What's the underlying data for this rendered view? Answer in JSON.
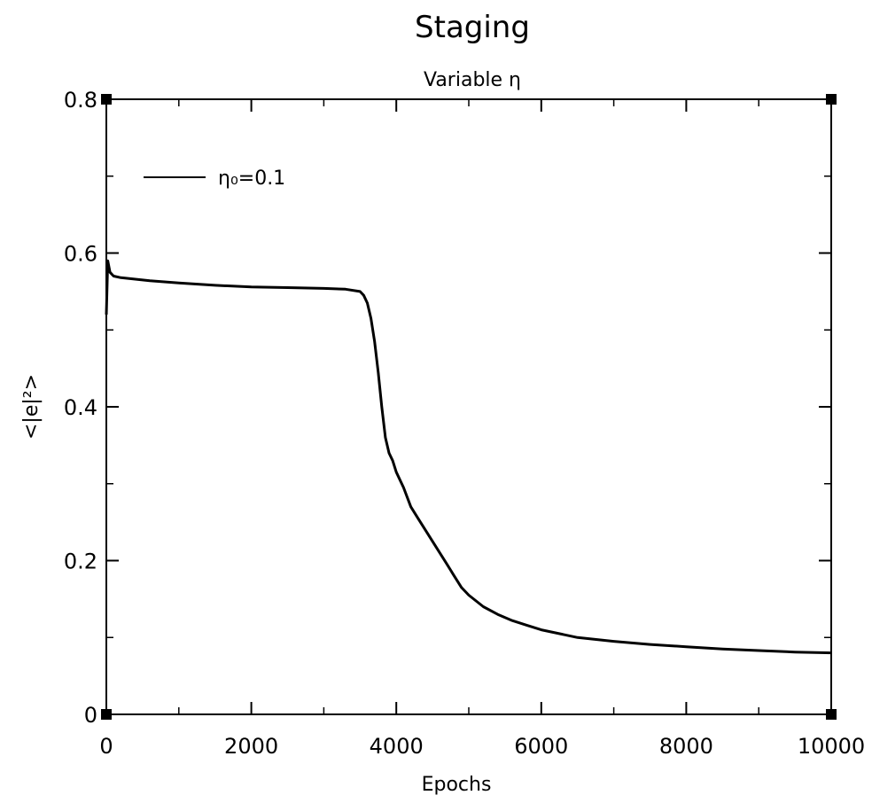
{
  "chart_data": {
    "type": "line",
    "title": "Staging",
    "subtitle": "Variable η",
    "xlabel": "Epochs",
    "ylabel": "<|e|²>",
    "xlim": [
      0,
      10000
    ],
    "ylim": [
      0,
      0.8
    ],
    "x_ticks": [
      0,
      2000,
      4000,
      6000,
      8000,
      10000
    ],
    "x_tick_labels": [
      "0",
      "2000",
      "4000",
      "6000",
      "8000",
      "10000"
    ],
    "y_ticks": [
      0,
      0.2,
      0.4,
      0.6,
      0.8
    ],
    "y_tick_labels": [
      "0",
      "0.2",
      "0.4",
      "0.6",
      "0.8"
    ],
    "grid": false,
    "legend_position": "top-left",
    "series": [
      {
        "name": "η₀=0.1",
        "color": "#000000",
        "x": [
          0,
          20,
          50,
          100,
          200,
          400,
          600,
          1000,
          1500,
          2000,
          2500,
          3000,
          3300,
          3500,
          3550,
          3600,
          3650,
          3700,
          3750,
          3800,
          3850,
          3900,
          3950,
          4000,
          4100,
          4200,
          4300,
          4400,
          4500,
          4600,
          4700,
          4800,
          4900,
          5000,
          5200,
          5400,
          5600,
          5800,
          6000,
          6500,
          7000,
          7500,
          8000,
          8500,
          9000,
          9500,
          10000
        ],
        "y": [
          0.52,
          0.59,
          0.575,
          0.57,
          0.568,
          0.566,
          0.564,
          0.561,
          0.558,
          0.556,
          0.555,
          0.554,
          0.553,
          0.55,
          0.545,
          0.535,
          0.515,
          0.485,
          0.445,
          0.4,
          0.36,
          0.34,
          0.33,
          0.315,
          0.295,
          0.27,
          0.255,
          0.24,
          0.225,
          0.21,
          0.195,
          0.18,
          0.165,
          0.155,
          0.14,
          0.13,
          0.122,
          0.116,
          0.11,
          0.1,
          0.095,
          0.091,
          0.088,
          0.085,
          0.083,
          0.081,
          0.08
        ]
      }
    ]
  }
}
